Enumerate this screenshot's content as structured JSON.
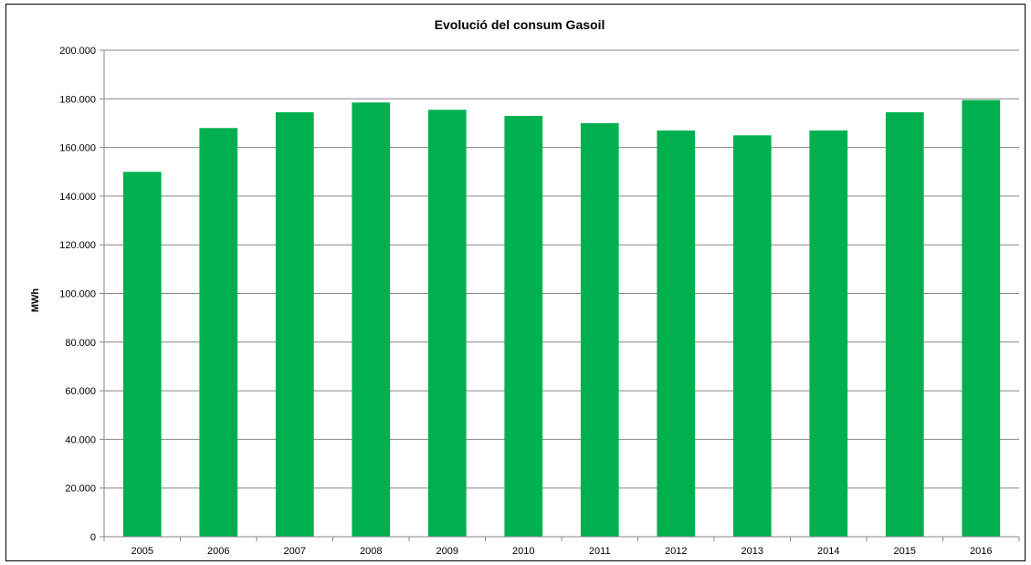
{
  "chart_data": {
    "type": "bar",
    "title": "Evolució del consum Gasoil",
    "xlabel": "",
    "ylabel": "MWh",
    "categories": [
      "2005",
      "2006",
      "2007",
      "2008",
      "2009",
      "2010",
      "2011",
      "2012",
      "2013",
      "2014",
      "2015",
      "2016"
    ],
    "values": [
      150000,
      168000,
      174500,
      178500,
      175500,
      173000,
      170000,
      167000,
      165000,
      167000,
      174500,
      179500
    ],
    "ylim": [
      0,
      200000
    ],
    "yticks": [
      0,
      20000,
      40000,
      60000,
      80000,
      100000,
      120000,
      140000,
      160000,
      180000,
      200000
    ],
    "ytick_labels": [
      "0",
      "20.000",
      "40.000",
      "60.000",
      "80.000",
      "100.000",
      "120.000",
      "140.000",
      "160.000",
      "180.000",
      "200.000"
    ],
    "grid": true,
    "legend": "none",
    "bar_color": "#00b04f",
    "grid_color": "#868686"
  }
}
